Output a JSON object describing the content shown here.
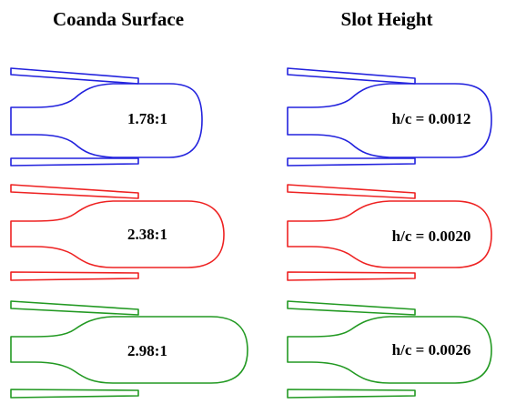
{
  "headers": {
    "left": "Coanda Surface",
    "right": "Slot Height"
  },
  "colors": {
    "row1": "#2222dd",
    "row2": "#ee2222",
    "row3": "#229922"
  },
  "rows": [
    {
      "left_label": "1.78:1",
      "right_label": "h/c = 0.0012"
    },
    {
      "left_label": "2.38:1",
      "right_label": "h/c = 0.0020"
    },
    {
      "left_label": "2.98:1",
      "right_label": "h/c = 0.0026"
    }
  ]
}
